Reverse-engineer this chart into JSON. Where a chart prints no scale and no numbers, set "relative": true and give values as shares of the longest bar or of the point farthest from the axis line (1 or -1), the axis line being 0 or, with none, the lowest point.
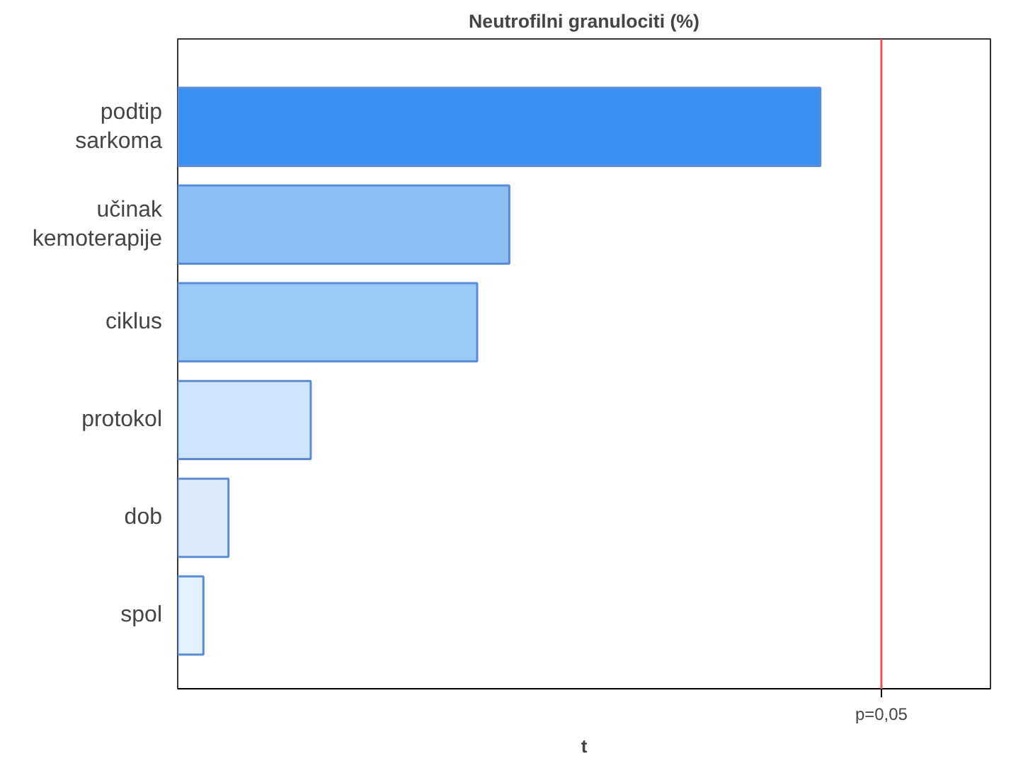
{
  "chart_data": {
    "type": "bar",
    "orientation": "horizontal",
    "relative": true,
    "title": "Neutrofilni granulociti (%)",
    "xlabel": "t",
    "categories": [
      "podtip sarkoma",
      "učinak kemoterapije",
      "ciklus",
      "protokol",
      "dob",
      "spol"
    ],
    "values": [
      1,
      0.516,
      0.466,
      0.207,
      0.079,
      0.04
    ],
    "colors": [
      "#3a92f0",
      "#8cc0f5",
      "#9ccaf6",
      "#cfe5fb",
      "#dbecfc",
      "#e3f0fd"
    ],
    "ref_lines": [
      {
        "axis": "x",
        "value": 1.095,
        "color": "#e8574f"
      }
    ],
    "annotations": [
      "p=0,05"
    ],
    "grid": false
  }
}
